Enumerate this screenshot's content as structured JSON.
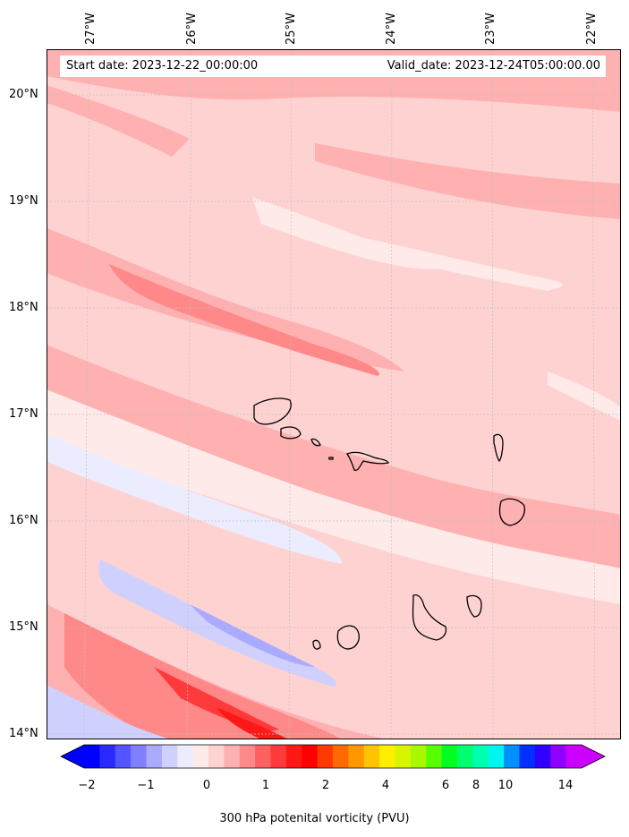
{
  "map": {
    "start_date": "Start date: 2023-12-22_00:00:00",
    "valid_date": "Valid_date: 2023-12-24T05:00:00.00",
    "lon_labels": [
      "27°W",
      "26°W",
      "25°W",
      "24°W",
      "23°W",
      "22°W"
    ],
    "lat_labels": [
      "20°N",
      "19°N",
      "18°N",
      "17°N",
      "16°N",
      "15°N",
      "14°N"
    ],
    "islands": [
      "Santo Antão",
      "São Vicente",
      "Santa Luzia",
      "São Nicolau",
      "Sal",
      "Boa Vista",
      "Maio",
      "Santiago",
      "Fogo",
      "Brava"
    ]
  },
  "colorbar": {
    "label": "300 hPa potenital vorticity (PVU)",
    "ticks": [
      "−2",
      "−1",
      "0",
      "1",
      "2",
      "4",
      "6",
      "8",
      "10",
      "14"
    ],
    "colors": [
      "#0000ff",
      "#2a2aff",
      "#5555ff",
      "#8080ff",
      "#aaaaff",
      "#d0d0ff",
      "#ececff",
      "#ffeaea",
      "#ffd2d2",
      "#ffb0b0",
      "#ff8888",
      "#ff6060",
      "#ff3a3a",
      "#ff1818",
      "#ff0000",
      "#ff3a00",
      "#ff6a00",
      "#ff9800",
      "#ffc400",
      "#ffee00",
      "#d8f400",
      "#a8f800",
      "#58ff00",
      "#00ff20",
      "#00ff70",
      "#00ffb0",
      "#00f4f0",
      "#0090ff",
      "#0030ff",
      "#3000ff",
      "#9000ff",
      "#cc00ff"
    ],
    "under_color": "#0000ff",
    "over_color": "#cc00ff"
  }
}
